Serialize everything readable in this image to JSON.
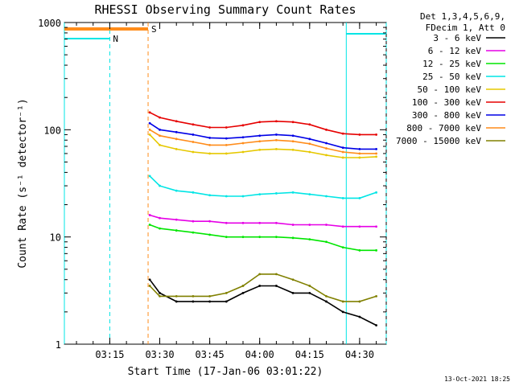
{
  "chart_data": {
    "type": "line",
    "title": "RHESSI Observing Summary Count Rates",
    "xlabel": "Start Time (17-Jan-06 03:01:22)",
    "ylabel": "Count Rate (s⁻¹ detector⁻¹)",
    "y_scale": "log",
    "xlim": [
      "03:01:22",
      "04:38:00"
    ],
    "ylim": [
      1,
      1000
    ],
    "x_ticks": [
      "03:15",
      "03:30",
      "03:45",
      "04:00",
      "04:15",
      "04:30"
    ],
    "y_ticks": [
      "1",
      "10",
      "100",
      "1000"
    ],
    "legend_header": [
      "Det 1,3,4,5,6,9,",
      "FDecim 1, Att 0"
    ],
    "legend_position": "right",
    "grid": false,
    "markers": [
      {
        "label": "N",
        "start": "03:01:22",
        "end": "03:15:00",
        "color": "#00e5e5"
      },
      {
        "label": "S",
        "start": "03:01:22",
        "end": "03:26:30",
        "color": "#ff8c1a"
      },
      {
        "label": "",
        "start": "04:26:00",
        "end": "04:38:00",
        "color": "#00e5e5"
      }
    ],
    "x": [
      "03:27",
      "03:30",
      "03:35",
      "03:40",
      "03:45",
      "03:50",
      "03:55",
      "04:00",
      "04:05",
      "04:10",
      "04:15",
      "04:20",
      "04:25",
      "04:30",
      "04:35"
    ],
    "series": [
      {
        "name": "3 - 6 keV",
        "color": "#000000",
        "values": [
          4,
          3,
          2.5,
          2.5,
          2.5,
          2.5,
          3,
          3.5,
          3.5,
          3,
          3,
          2.5,
          2,
          1.8,
          1.5
        ]
      },
      {
        "name": "6 - 12 keV",
        "color": "#e600e6",
        "values": [
          16,
          15,
          14.5,
          14,
          14,
          13.5,
          13.5,
          13.5,
          13.5,
          13,
          13,
          13,
          12.5,
          12.5,
          12.5
        ]
      },
      {
        "name": "12 - 25 keV",
        "color": "#00e600",
        "values": [
          13,
          12,
          11.5,
          11,
          10.5,
          10,
          10,
          10,
          10,
          9.8,
          9.5,
          9,
          8,
          7.5,
          7.5
        ]
      },
      {
        "name": "25 - 50 keV",
        "color": "#00e5e5",
        "values": [
          37,
          30,
          27,
          26,
          24.5,
          24,
          24,
          25,
          25.5,
          26,
          25,
          24,
          23,
          23,
          26
        ]
      },
      {
        "name": "50 - 100 keV",
        "color": "#e6c800",
        "values": [
          90,
          72,
          66,
          62,
          60,
          60,
          62,
          65,
          66,
          65,
          62,
          58,
          55,
          55,
          56
        ]
      },
      {
        "name": "100 - 300 keV",
        "color": "#e60000",
        "values": [
          145,
          130,
          120,
          112,
          105,
          105,
          110,
          118,
          120,
          118,
          112,
          100,
          92,
          90,
          90
        ]
      },
      {
        "name": "300 - 800 keV",
        "color": "#0000e6",
        "values": [
          115,
          100,
          95,
          90,
          84,
          83,
          85,
          88,
          90,
          88,
          82,
          75,
          68,
          66,
          66
        ]
      },
      {
        "name": "800 - 7000 keV",
        "color": "#ff8c1a",
        "values": [
          100,
          88,
          82,
          77,
          72,
          72,
          75,
          78,
          80,
          78,
          74,
          67,
          62,
          60,
          60
        ]
      },
      {
        "name": "7000 - 15000 keV",
        "color": "#808000",
        "values": [
          3.5,
          2.8,
          2.8,
          2.8,
          2.8,
          3,
          3.5,
          4.5,
          4.5,
          4,
          3.5,
          2.8,
          2.5,
          2.5,
          2.8
        ]
      }
    ]
  },
  "footer": {
    "stamp": "13-Oct-2021 18:25"
  }
}
